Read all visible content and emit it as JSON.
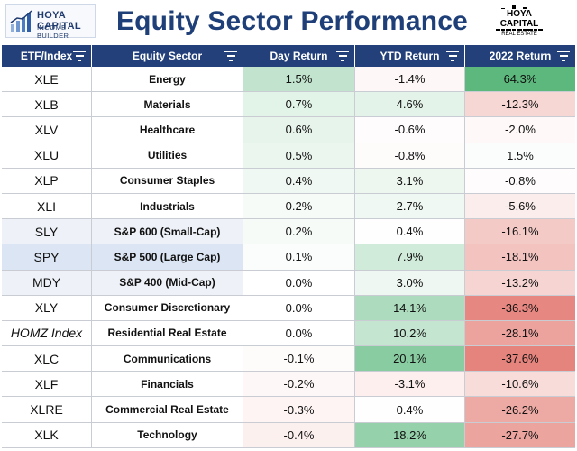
{
  "header": {
    "left_logo_line1": "HOYA CAPITAL",
    "left_logo_line2": "INCOME BUILDER",
    "title": "Equity Sector Performance",
    "right_logo_line1": "HOYA CAPITAL",
    "right_logo_line2": "REAL ESTATE",
    "left_logo_icon": "chart-growth-icon",
    "right_logo_icon": "city-skyline-icon"
  },
  "colors": {
    "header_bg": "#23407a",
    "title": "#1e3f78",
    "positive": "#5cb87c",
    "negative": "#e06b63"
  },
  "columns": [
    {
      "label": "ETF/Index",
      "filter_icon": "filter-icon"
    },
    {
      "label": "Equity Sector",
      "filter_icon": "filter-icon"
    },
    {
      "label": "Day Return",
      "filter_icon": "filter-icon"
    },
    {
      "label": "YTD Return",
      "filter_icon": "filter-icon"
    },
    {
      "label": "2022 Return",
      "filter_icon": "filter-icon"
    }
  ],
  "rows": [
    {
      "etf": "XLE",
      "sector": "Energy",
      "day": "1.5%",
      "ytd": "-1.4%",
      "y2022": "64.3%"
    },
    {
      "etf": "XLB",
      "sector": "Materials",
      "day": "0.7%",
      "ytd": "4.6%",
      "y2022": "-12.3%"
    },
    {
      "etf": "XLV",
      "sector": "Healthcare",
      "day": "0.6%",
      "ytd": "-0.6%",
      "y2022": "-2.0%"
    },
    {
      "etf": "XLU",
      "sector": "Utilities",
      "day": "0.5%",
      "ytd": "-0.8%",
      "y2022": "1.5%"
    },
    {
      "etf": "XLP",
      "sector": "Consumer Staples",
      "day": "0.4%",
      "ytd": "3.1%",
      "y2022": "-0.8%"
    },
    {
      "etf": "XLI",
      "sector": "Industrials",
      "day": "0.2%",
      "ytd": "2.7%",
      "y2022": "-5.6%"
    },
    {
      "etf": "SLY",
      "sector": "S&P 600 (Small-Cap)",
      "day": "0.2%",
      "ytd": "0.4%",
      "y2022": "-16.1%"
    },
    {
      "etf": "SPY",
      "sector": "S&P 500 (Large Cap)",
      "day": "0.1%",
      "ytd": "7.9%",
      "y2022": "-18.1%"
    },
    {
      "etf": "MDY",
      "sector": "S&P 400 (Mid-Cap)",
      "day": "0.0%",
      "ytd": "3.0%",
      "y2022": "-13.2%"
    },
    {
      "etf": "XLY",
      "sector": "Consumer Discretionary",
      "day": "0.0%",
      "ytd": "14.1%",
      "y2022": "-36.3%"
    },
    {
      "etf": "HOMZ Index",
      "sector": "Residential Real Estate",
      "day": "0.0%",
      "ytd": "10.2%",
      "y2022": "-28.1%"
    },
    {
      "etf": "XLC",
      "sector": "Communications",
      "day": "-0.1%",
      "ytd": "20.1%",
      "y2022": "-37.6%"
    },
    {
      "etf": "XLF",
      "sector": "Financials",
      "day": "-0.2%",
      "ytd": "-3.1%",
      "y2022": "-10.6%"
    },
    {
      "etf": "XLRE",
      "sector": "Commercial Real Estate",
      "day": "-0.3%",
      "ytd": "0.4%",
      "y2022": "-26.2%"
    },
    {
      "etf": "XLK",
      "sector": "Technology",
      "day": "-0.4%",
      "ytd": "18.2%",
      "y2022": "-27.7%"
    }
  ]
}
